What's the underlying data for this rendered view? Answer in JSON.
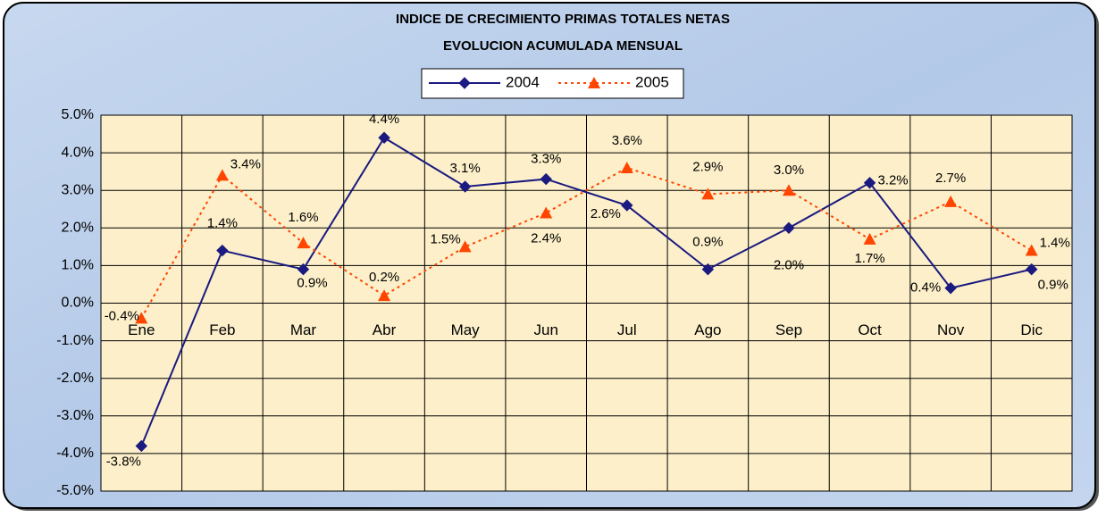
{
  "chart_data": {
    "type": "line",
    "title": "INDICE DE CRECIMIENTO  PRIMAS TOTALES NETAS",
    "subtitle": "EVOLUCION  ACUMULADA MENSUAL",
    "categories": [
      "Ene",
      "Feb",
      "Mar",
      "Abr",
      "May",
      "Jun",
      "Jul",
      "Ago",
      "Sep",
      "Oct",
      "Nov",
      "Dic"
    ],
    "series": [
      {
        "name": "2004",
        "color": "#1a1a80",
        "marker": "diamond",
        "dash": false,
        "values": [
          -3.8,
          1.4,
          0.9,
          4.4,
          3.1,
          3.3,
          2.6,
          0.9,
          2.0,
          3.2,
          0.4,
          0.9
        ],
        "value_labels": [
          "-3.8%",
          "1.4%",
          "0.9%",
          "4.4%",
          "3.1%",
          "3.3%",
          "2.6%",
          "0.9%",
          "2.0%",
          "3.2%",
          "0.4%",
          "0.9%"
        ]
      },
      {
        "name": "2005",
        "color": "#ff4500",
        "marker": "triangle",
        "dash": true,
        "values": [
          -0.4,
          3.4,
          1.6,
          0.2,
          1.5,
          2.4,
          3.6,
          2.9,
          3.0,
          1.7,
          2.7,
          1.4
        ],
        "value_labels": [
          "-0.4%",
          "3.4%",
          "1.6%",
          "0.2%",
          "1.5%",
          "2.4%",
          "3.6%",
          "2.9%",
          "3.0%",
          "1.7%",
          "2.7%",
          "1.4%"
        ]
      }
    ],
    "ylim": [
      -5,
      5
    ],
    "yticks": [
      {
        "value": 5,
        "label": "5.0%"
      },
      {
        "value": 4,
        "label": "4.0%"
      },
      {
        "value": 3,
        "label": "3.0%"
      },
      {
        "value": 2,
        "label": "2.0%"
      },
      {
        "value": 1,
        "label": "1.0%"
      },
      {
        "value": 0,
        "label": "0.0%"
      },
      {
        "value": -1,
        "label": "-1.0%"
      },
      {
        "value": -2,
        "label": "-2.0%"
      },
      {
        "value": -3,
        "label": "-3.0%"
      },
      {
        "value": -4,
        "label": "-4.0%"
      },
      {
        "value": -5,
        "label": "-5.0%"
      }
    ],
    "grid": true,
    "legend": "top"
  }
}
